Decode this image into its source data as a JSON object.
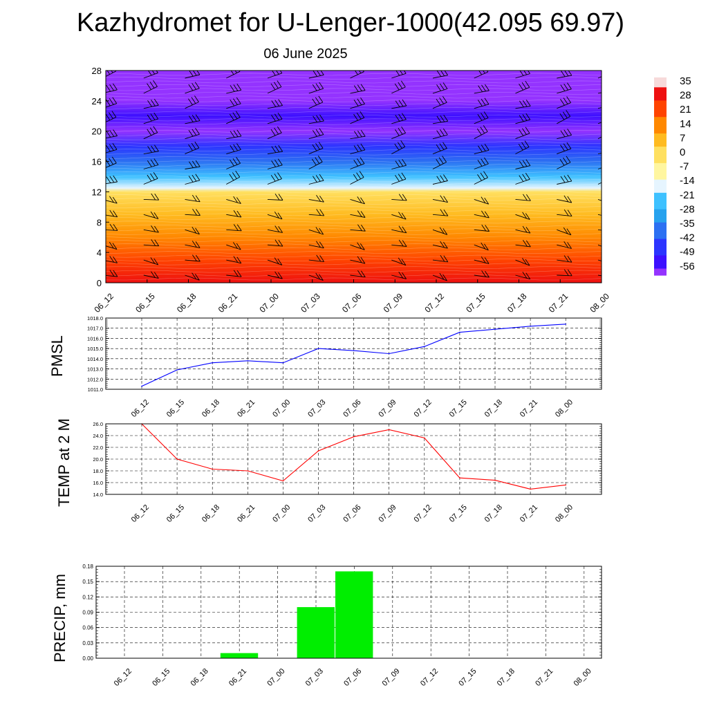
{
  "title": "Kazhydromet for U-Lenger-1000(42.095 69.97)",
  "subtitle": "06 June 2025",
  "time_labels": [
    "06_12",
    "06_15",
    "06_18",
    "06_21",
    "07_00",
    "07_03",
    "07_06",
    "07_09",
    "07_12",
    "07_15",
    "07_18",
    "07_21",
    "08_00"
  ],
  "chart_data": [
    {
      "type": "heatmap",
      "name": "temperature-wind-cross-section",
      "x": [
        "06_12",
        "06_15",
        "06_18",
        "06_21",
        "07_00",
        "07_03",
        "07_06",
        "07_09",
        "07_12",
        "07_15",
        "07_18",
        "07_21",
        "08_00"
      ],
      "ylim": [
        0,
        28
      ],
      "yticks": [
        0,
        4,
        8,
        12,
        16,
        20,
        24,
        28
      ],
      "colorbar_labels": [
        "35",
        "28",
        "21",
        "14",
        "7",
        "0",
        "-7",
        "-14",
        "-21",
        "-28",
        "-35",
        "-42",
        "-49",
        "-56"
      ],
      "colorbar_values": [
        35,
        28,
        21,
        14,
        7,
        0,
        -7,
        -14,
        -21,
        -28,
        -35,
        -42,
        -49,
        -56
      ],
      "colorbar_colors": [
        "#f7dada",
        "#ee1010",
        "#ff4400",
        "#ff8800",
        "#ffbb20",
        "#ffe060",
        "#fff6a0",
        "#e6f5ff",
        "#3ec1ff",
        "#27a2ee",
        "#2c70f2",
        "#2c35ff",
        "#3d10ff",
        "#9433ff"
      ],
      "level_profile": [
        {
          "level": 0,
          "value": 30
        },
        {
          "level": 3,
          "value": 24
        },
        {
          "level": 6,
          "value": 16
        },
        {
          "level": 9,
          "value": 9
        },
        {
          "level": 12,
          "value": 2
        },
        {
          "level": 12.5,
          "value": -14
        },
        {
          "level": 14,
          "value": -22
        },
        {
          "level": 16,
          "value": -32
        },
        {
          "level": 18,
          "value": -45
        },
        {
          "level": 20,
          "value": -56
        },
        {
          "level": 22,
          "value": -52
        },
        {
          "level": 24,
          "value": -60
        },
        {
          "level": 28,
          "value": -62
        }
      ],
      "wind_barb_levels": [
        1,
        3,
        5,
        7,
        9,
        11,
        13,
        15,
        17,
        19,
        21,
        23,
        25,
        27
      ]
    },
    {
      "type": "line",
      "name": "pmsl",
      "ylabel": "PMSL",
      "x": [
        "06_12",
        "06_15",
        "06_18",
        "06_21",
        "07_00",
        "07_03",
        "07_06",
        "07_09",
        "07_12",
        "07_15",
        "07_18",
        "07_21",
        "08_00"
      ],
      "series": [
        {
          "values": [
            1011.3,
            1012.9,
            1013.6,
            1013.8,
            1013.6,
            1015.0,
            1014.8,
            1014.5,
            1015.2,
            1016.6,
            1016.9,
            1017.2,
            1017.4
          ]
        }
      ],
      "color": "#0000ff",
      "ylim": [
        1011.0,
        1018.0
      ],
      "ytick_labels": [
        "1011.0",
        "1012.0",
        "1013.0",
        "1014.0",
        "1015.0",
        "1016.0",
        "1017.0",
        "1018.0"
      ],
      "ytick_values": [
        1011,
        1012,
        1013,
        1014,
        1015,
        1016,
        1017,
        1018
      ]
    },
    {
      "type": "line",
      "name": "temp-2m",
      "ylabel": "TEMP at 2 M",
      "x": [
        "06_12",
        "06_15",
        "06_18",
        "06_21",
        "07_00",
        "07_03",
        "07_06",
        "07_09",
        "07_12",
        "07_15",
        "07_18",
        "07_21",
        "08_00"
      ],
      "series": [
        {
          "values": [
            26.0,
            20.0,
            18.3,
            18.0,
            16.3,
            21.4,
            23.8,
            25.0,
            23.6,
            16.8,
            16.4,
            14.9,
            15.6
          ]
        }
      ],
      "color": "#ff0000",
      "ylim": [
        14.0,
        26.0
      ],
      "ytick_labels": [
        "14.0",
        "16.0",
        "18.0",
        "20.0",
        "22.0",
        "24.0",
        "26.0"
      ],
      "ytick_values": [
        14,
        16,
        18,
        20,
        22,
        24,
        26
      ]
    },
    {
      "type": "bar",
      "name": "precip",
      "ylabel": "PRECIP, mm",
      "categories": [
        "06_12",
        "06_15",
        "06_18",
        "06_21",
        "07_00",
        "07_03",
        "07_06",
        "07_09",
        "07_12",
        "07_15",
        "07_18",
        "07_21",
        "08_00"
      ],
      "values": [
        0,
        0,
        0,
        0.01,
        0,
        0.1,
        0.17,
        0,
        0,
        0,
        0,
        0,
        0
      ],
      "color": "#00ee00",
      "ylim": [
        0,
        0.18
      ],
      "ytick_labels": [
        "0.00",
        "0.03",
        "0.06",
        "0.09",
        "0.12",
        "0.15",
        "0.18"
      ],
      "ytick_values": [
        0,
        0.03,
        0.06,
        0.09,
        0.12,
        0.15,
        0.18
      ]
    }
  ]
}
